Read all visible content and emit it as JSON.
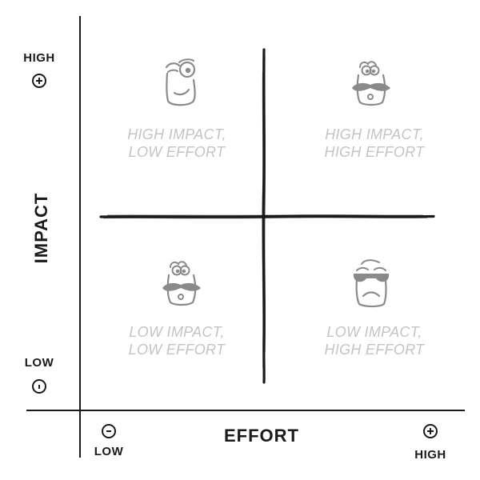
{
  "axes": {
    "y_title": "IMPACT",
    "x_title": "EFFORT",
    "y_high_label": "HIGH",
    "y_low_label": "LOW",
    "x_low_label": "LOW",
    "x_high_label": "HIGH"
  },
  "quadrants": [
    {
      "id": "top-left",
      "line1": "HIGH IMPACT,",
      "line2": "LOW EFFORT",
      "face_icon": "winking-face-icon"
    },
    {
      "id": "top-right",
      "line1": "HIGH IMPACT,",
      "line2": "HIGH EFFORT",
      "face_icon": "mustache-face-icon"
    },
    {
      "id": "bottom-left",
      "line1": "LOW IMPACT,",
      "line2": "LOW EFFORT",
      "face_icon": "mustache-face-icon"
    },
    {
      "id": "bottom-right",
      "line1": "LOW IMPACT,",
      "line2": "HIGH EFFORT",
      "face_icon": "sunglasses-sad-face-icon"
    }
  ],
  "colors": {
    "ink": "#1a1a1a",
    "quadrant_text": "#c4c4c4",
    "face_stroke": "#8a8a8a"
  }
}
